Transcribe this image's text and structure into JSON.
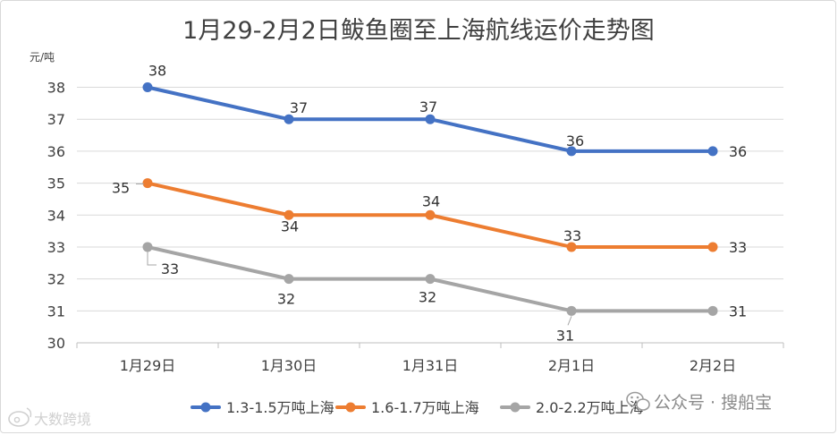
{
  "chart_data": {
    "type": "line",
    "title": "1月29-2月2日鲅鱼圈至上海航线运价走势图",
    "ylabel": "元/吨",
    "xlabel": "",
    "categories": [
      "1月29日",
      "1月30日",
      "1月31日",
      "2月1日",
      "2月2日"
    ],
    "ylim": [
      30,
      38
    ],
    "yticks": [
      30,
      31,
      32,
      33,
      34,
      35,
      36,
      37,
      38
    ],
    "grid": true,
    "legend_position": "bottom",
    "series": [
      {
        "name": "1.3-1.5万吨上海",
        "color": "#4472C4",
        "values": [
          38,
          37,
          37,
          36,
          36
        ]
      },
      {
        "name": "1.6-1.7万吨上海",
        "color": "#ED7D31",
        "values": [
          35,
          34,
          34,
          33,
          33
        ]
      },
      {
        "name": "2.0-2.2万吨上海",
        "color": "#A5A5A5",
        "values": [
          33,
          32,
          32,
          31,
          31
        ]
      }
    ]
  },
  "watermarks": {
    "wechat": "公众号 · 搜船宝",
    "weibo": "大数跨境"
  }
}
